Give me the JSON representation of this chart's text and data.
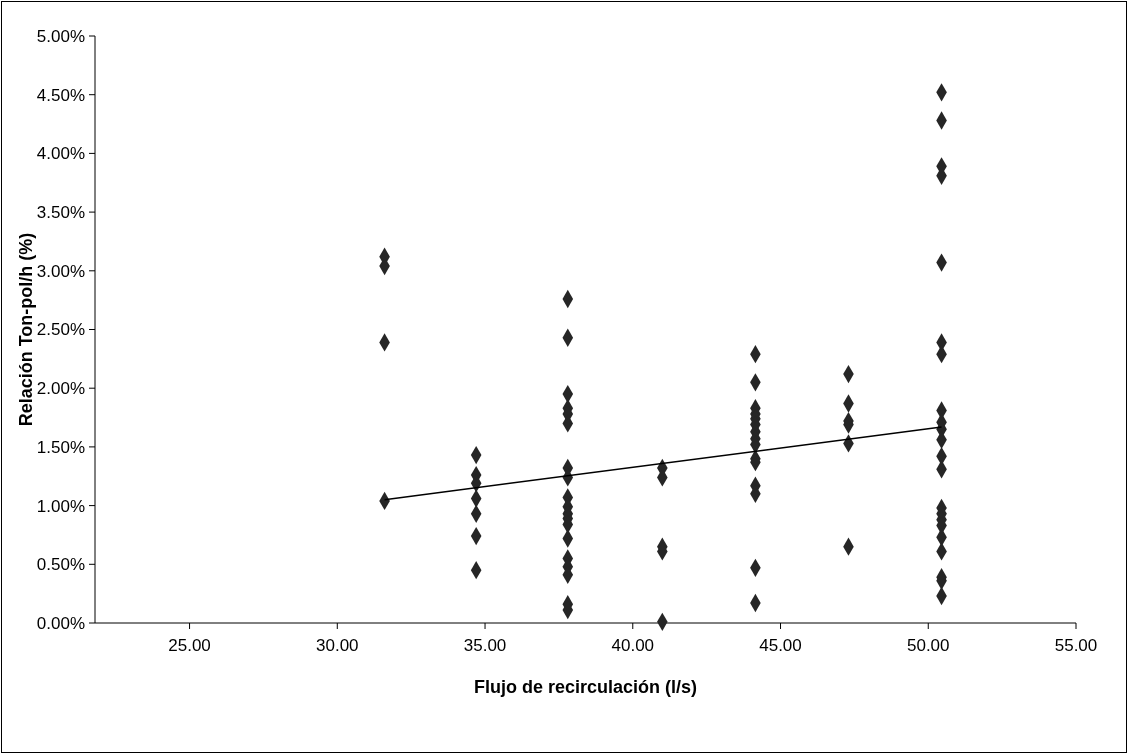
{
  "chart_data": {
    "type": "scatter",
    "xlabel": "Flujo de recirculación (l/s)",
    "ylabel": "Relación Ton-pol/h (%)",
    "xlim": [
      21.8,
      55
    ],
    "xticks": [
      {
        "value": 25,
        "label": "25.00"
      },
      {
        "value": 30,
        "label": "30.00"
      },
      {
        "value": 35,
        "label": "35.00"
      },
      {
        "value": 40,
        "label": "40.00"
      },
      {
        "value": 45,
        "label": "45.00"
      },
      {
        "value": 50,
        "label": "50.00"
      },
      {
        "value": 55,
        "label": "55.00"
      }
    ],
    "ylim": [
      0,
      5
    ],
    "yticks": [
      {
        "value": 0,
        "label": "0.00%"
      },
      {
        "value": 0.5,
        "label": "0.50%"
      },
      {
        "value": 1,
        "label": "1.00%"
      },
      {
        "value": 1.5,
        "label": "1.50%"
      },
      {
        "value": 2,
        "label": "2.00%"
      },
      {
        "value": 2.5,
        "label": "2.50%"
      },
      {
        "value": 3,
        "label": "3.00%"
      },
      {
        "value": 3.5,
        "label": "3.50%"
      },
      {
        "value": 4,
        "label": "4.00%"
      },
      {
        "value": 4.5,
        "label": "4.50%"
      },
      {
        "value": 5,
        "label": "5.00%"
      }
    ],
    "grid": false,
    "series": [
      {
        "color": "#262626",
        "marker": "diamond",
        "x": [
          31.6,
          31.6,
          31.6,
          31.6,
          34.7,
          34.7,
          34.7,
          34.7,
          34.7,
          34.7,
          34.7,
          37.8,
          37.8,
          37.8,
          37.8,
          37.8,
          37.8,
          37.8,
          37.8,
          37.8,
          37.8,
          37.8,
          37.8,
          37.8,
          37.8,
          37.8,
          37.8,
          37.8,
          37.8,
          37.8,
          41.0,
          41.0,
          41.0,
          41.0,
          41.0,
          44.15,
          44.15,
          44.15,
          44.15,
          44.15,
          44.15,
          44.15,
          44.15,
          44.15,
          44.15,
          44.15,
          44.15,
          44.15,
          44.15,
          44.15,
          47.3,
          47.3,
          47.3,
          47.3,
          47.3,
          47.3,
          50.45,
          50.45,
          50.45,
          50.45,
          50.45,
          50.45,
          50.45,
          50.45,
          50.45,
          50.45,
          50.45,
          50.45,
          50.45,
          50.45,
          50.45,
          50.45,
          50.45,
          50.45,
          50.45,
          50.45,
          50.45,
          50.45
        ],
        "values": [
          3.12,
          3.04,
          2.39,
          1.04,
          1.43,
          1.26,
          1.19,
          1.06,
          0.93,
          0.74,
          0.45,
          2.76,
          2.43,
          1.95,
          1.83,
          1.78,
          1.7,
          1.32,
          1.24,
          1.07,
          0.99,
          0.93,
          0.89,
          0.84,
          0.72,
          0.55,
          0.48,
          0.41,
          0.16,
          0.11,
          1.32,
          1.24,
          0.65,
          0.61,
          0.01,
          2.29,
          2.05,
          1.83,
          1.78,
          1.74,
          1.69,
          1.63,
          1.57,
          1.52,
          1.4,
          1.37,
          1.17,
          1.1,
          0.47,
          0.17,
          2.12,
          1.87,
          1.72,
          1.69,
          1.53,
          0.65,
          4.52,
          4.28,
          3.89,
          3.81,
          3.07,
          2.39,
          2.29,
          1.81,
          1.71,
          1.65,
          1.56,
          1.42,
          1.31,
          0.98,
          0.93,
          0.88,
          0.83,
          0.73,
          0.61,
          0.39,
          0.36,
          0.23
        ]
      },
      {
        "type": "line",
        "color": "#000000",
        "marker": "none",
        "x": [
          31.6,
          50.45
        ],
        "values": [
          1.05,
          1.67
        ]
      }
    ]
  }
}
